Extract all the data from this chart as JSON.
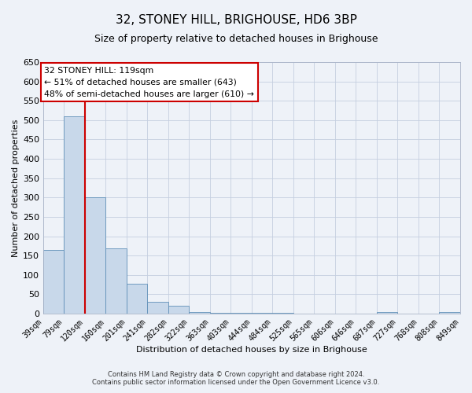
{
  "title": "32, STONEY HILL, BRIGHOUSE, HD6 3BP",
  "subtitle": "Size of property relative to detached houses in Brighouse",
  "xlabel": "Distribution of detached houses by size in Brighouse",
  "ylabel": "Number of detached properties",
  "bar_edges": [
    39,
    79,
    120,
    160,
    201,
    241,
    282,
    322,
    363,
    403,
    444,
    484,
    525,
    565,
    606,
    646,
    687,
    727,
    768,
    808,
    849
  ],
  "bar_heights": [
    165,
    510,
    300,
    168,
    78,
    30,
    20,
    5,
    2,
    2,
    1,
    1,
    0,
    0,
    0,
    0,
    5,
    0,
    0,
    5
  ],
  "bar_color": "#c8d8ea",
  "bar_edge_color": "#6090b8",
  "vline_x": 120,
  "vline_color": "#cc0000",
  "ylim": [
    0,
    650
  ],
  "yticks": [
    0,
    50,
    100,
    150,
    200,
    250,
    300,
    350,
    400,
    450,
    500,
    550,
    600,
    650
  ],
  "xtick_labels": [
    "39sqm",
    "79sqm",
    "120sqm",
    "160sqm",
    "201sqm",
    "241sqm",
    "282sqm",
    "322sqm",
    "363sqm",
    "403sqm",
    "444sqm",
    "484sqm",
    "525sqm",
    "565sqm",
    "606sqm",
    "646sqm",
    "687sqm",
    "727sqm",
    "768sqm",
    "808sqm",
    "849sqm"
  ],
  "annotation_text": "32 STONEY HILL: 119sqm\n← 51% of detached houses are smaller (643)\n48% of semi-detached houses are larger (610) →",
  "annotation_box_facecolor": "#ffffff",
  "annotation_box_edgecolor": "#cc0000",
  "footer_line1": "Contains HM Land Registry data © Crown copyright and database right 2024.",
  "footer_line2": "Contains public sector information licensed under the Open Government Licence v3.0.",
  "background_color": "#eef2f8",
  "grid_color": "#c5cfe0",
  "title_fontsize": 11,
  "subtitle_fontsize": 9,
  "ylabel_fontsize": 8,
  "xlabel_fontsize": 8,
  "ytick_fontsize": 8,
  "xtick_fontsize": 7,
  "footer_fontsize": 6
}
